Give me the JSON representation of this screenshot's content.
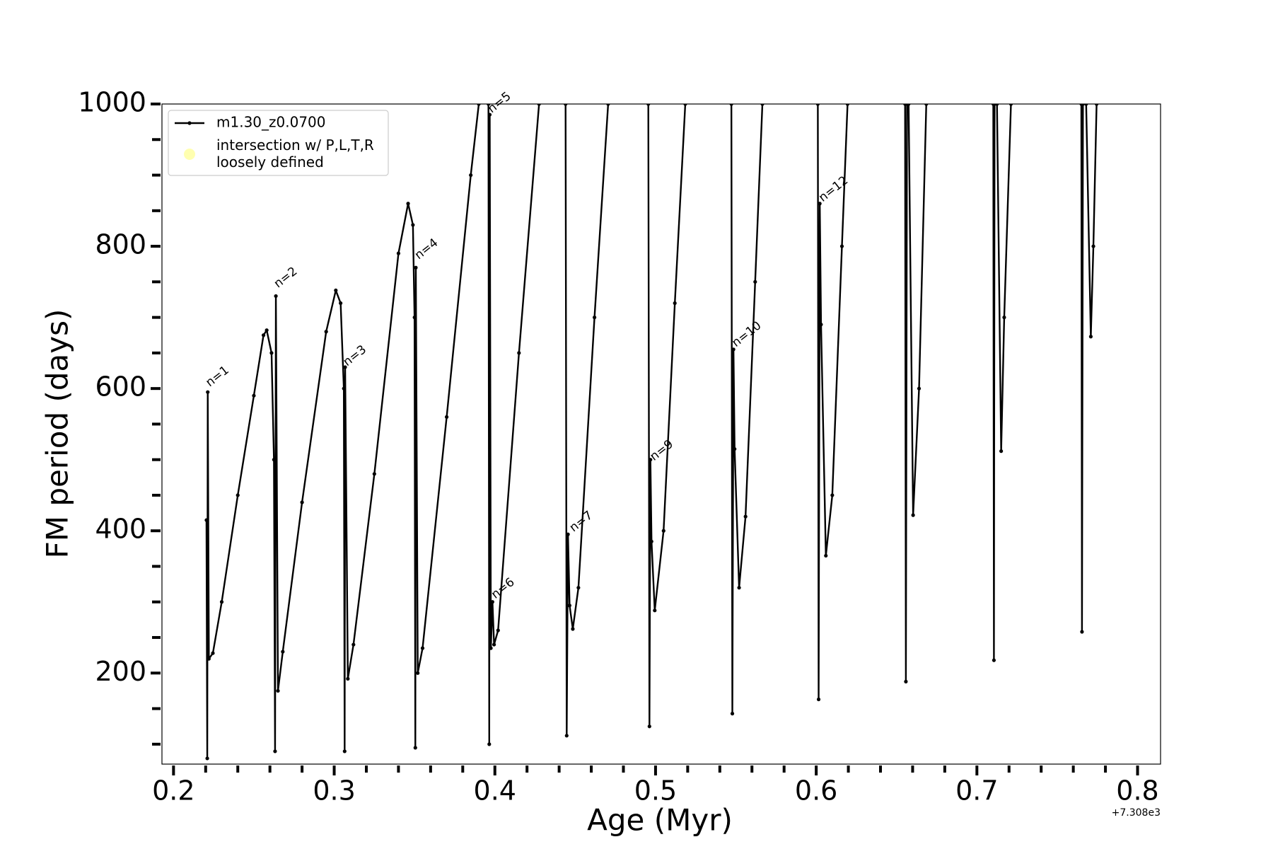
{
  "chart_data": {
    "type": "line",
    "xlabel": "Age (Myr)",
    "ylabel": "FM period (days)",
    "x_offset_label": "+7.308e3",
    "xlim": [
      0.1928,
      0.8143
    ],
    "ylim": [
      72,
      1000
    ],
    "xticks": [
      0.2,
      0.3,
      0.4,
      0.5,
      0.6,
      0.7,
      0.8
    ],
    "xticks_minor": [
      0.22,
      0.24,
      0.26,
      0.28,
      0.32,
      0.34,
      0.36,
      0.38,
      0.42,
      0.44,
      0.46,
      0.48,
      0.52,
      0.54,
      0.56,
      0.58,
      0.62,
      0.64,
      0.66,
      0.68,
      0.72,
      0.74,
      0.76,
      0.78
    ],
    "yticks": [
      200,
      400,
      600,
      800,
      1000
    ],
    "yticks_minor": [
      100,
      150,
      250,
      300,
      350,
      450,
      500,
      550,
      650,
      700,
      750,
      850,
      900,
      950
    ],
    "legend_position": "upper left",
    "series": [
      {
        "name": "m1.30_z0.0700",
        "color": "#000000",
        "x": [
          0.2205,
          0.221,
          0.2213,
          0.222,
          0.2245,
          0.23,
          0.24,
          0.25,
          0.256,
          0.258,
          0.261,
          0.2625,
          0.2632,
          0.2637,
          0.265,
          0.268,
          0.28,
          0.295,
          0.301,
          0.304,
          0.306,
          0.3065,
          0.3068,
          0.3085,
          0.312,
          0.325,
          0.34,
          0.346,
          0.349,
          0.35,
          0.3505,
          0.3508,
          0.352,
          0.355,
          0.37,
          0.385,
          0.39,
          null,
          0.396,
          0.3965,
          0.3968,
          0.3975,
          0.3985,
          0.3995,
          0.402,
          0.415,
          0.4275,
          null,
          0.444,
          0.4447,
          0.4455,
          0.4465,
          0.4485,
          0.452,
          0.462,
          0.4705,
          null,
          0.4955,
          0.4962,
          0.4968,
          0.4975,
          0.4995,
          0.505,
          0.512,
          0.5185,
          null,
          0.5472,
          0.5478,
          0.5485,
          0.5492,
          0.552,
          0.556,
          0.562,
          0.5665,
          null,
          0.601,
          0.6015,
          0.6022,
          0.603,
          0.606,
          0.61,
          0.616,
          0.6195,
          null,
          0.6553,
          0.6558,
          0.6565,
          null,
          0.6575,
          0.6603,
          0.664,
          0.6685,
          null,
          0.7102,
          0.7106,
          0.711,
          null,
          0.7125,
          0.7151,
          0.717,
          0.7212,
          null,
          0.765,
          0.7654,
          0.766,
          null,
          0.768,
          0.7709,
          0.7725,
          0.7745
        ],
        "values": [
          415,
          80,
          595,
          220,
          228,
          300,
          450,
          590,
          675,
          682,
          650,
          500,
          90,
          730,
          175,
          230,
          440,
          680,
          738,
          720,
          600,
          90,
          630,
          192,
          240,
          480,
          790,
          860,
          830,
          700,
          95,
          770,
          200,
          235,
          560,
          900,
          1000,
          null,
          1000,
          100,
          985,
          235,
          300,
          240,
          260,
          650,
          1000,
          null,
          1000,
          112,
          395,
          295,
          262,
          320,
          700,
          1000,
          null,
          1000,
          125,
          500,
          385,
          288,
          400,
          720,
          1000,
          null,
          1000,
          143,
          655,
          515,
          320,
          420,
          750,
          1000,
          null,
          1000,
          163,
          860,
          690,
          365,
          450,
          800,
          1000,
          null,
          1000,
          188,
          1000,
          null,
          1000,
          422,
          600,
          1000,
          null,
          1000,
          218,
          1000,
          null,
          1000,
          512,
          700,
          1000,
          null,
          1000,
          258,
          1000,
          null,
          1000,
          673,
          800,
          1000
        ]
      },
      {
        "name": "intersection w/ P,L,T,R\nloosely defined",
        "color": "#ffffb0",
        "type": "scatter",
        "x": [],
        "values": []
      }
    ],
    "annotations": [
      {
        "text": "n=1",
        "x": 0.2225,
        "y": 602
      },
      {
        "text": "n=2",
        "x": 0.265,
        "y": 741
      },
      {
        "text": "n=3",
        "x": 0.308,
        "y": 631
      },
      {
        "text": "n=4",
        "x": 0.3526,
        "y": 781
      },
      {
        "text": "n=5",
        "x": 0.398,
        "y": 987
      },
      {
        "text": "n=6",
        "x": 0.4002,
        "y": 304
      },
      {
        "text": "n=7",
        "x": 0.4489,
        "y": 398
      },
      {
        "text": "n=9",
        "x": 0.499,
        "y": 498
      },
      {
        "text": "n=10",
        "x": 0.55,
        "y": 658
      },
      {
        "text": "n=12",
        "x": 0.604,
        "y": 862
      }
    ]
  }
}
